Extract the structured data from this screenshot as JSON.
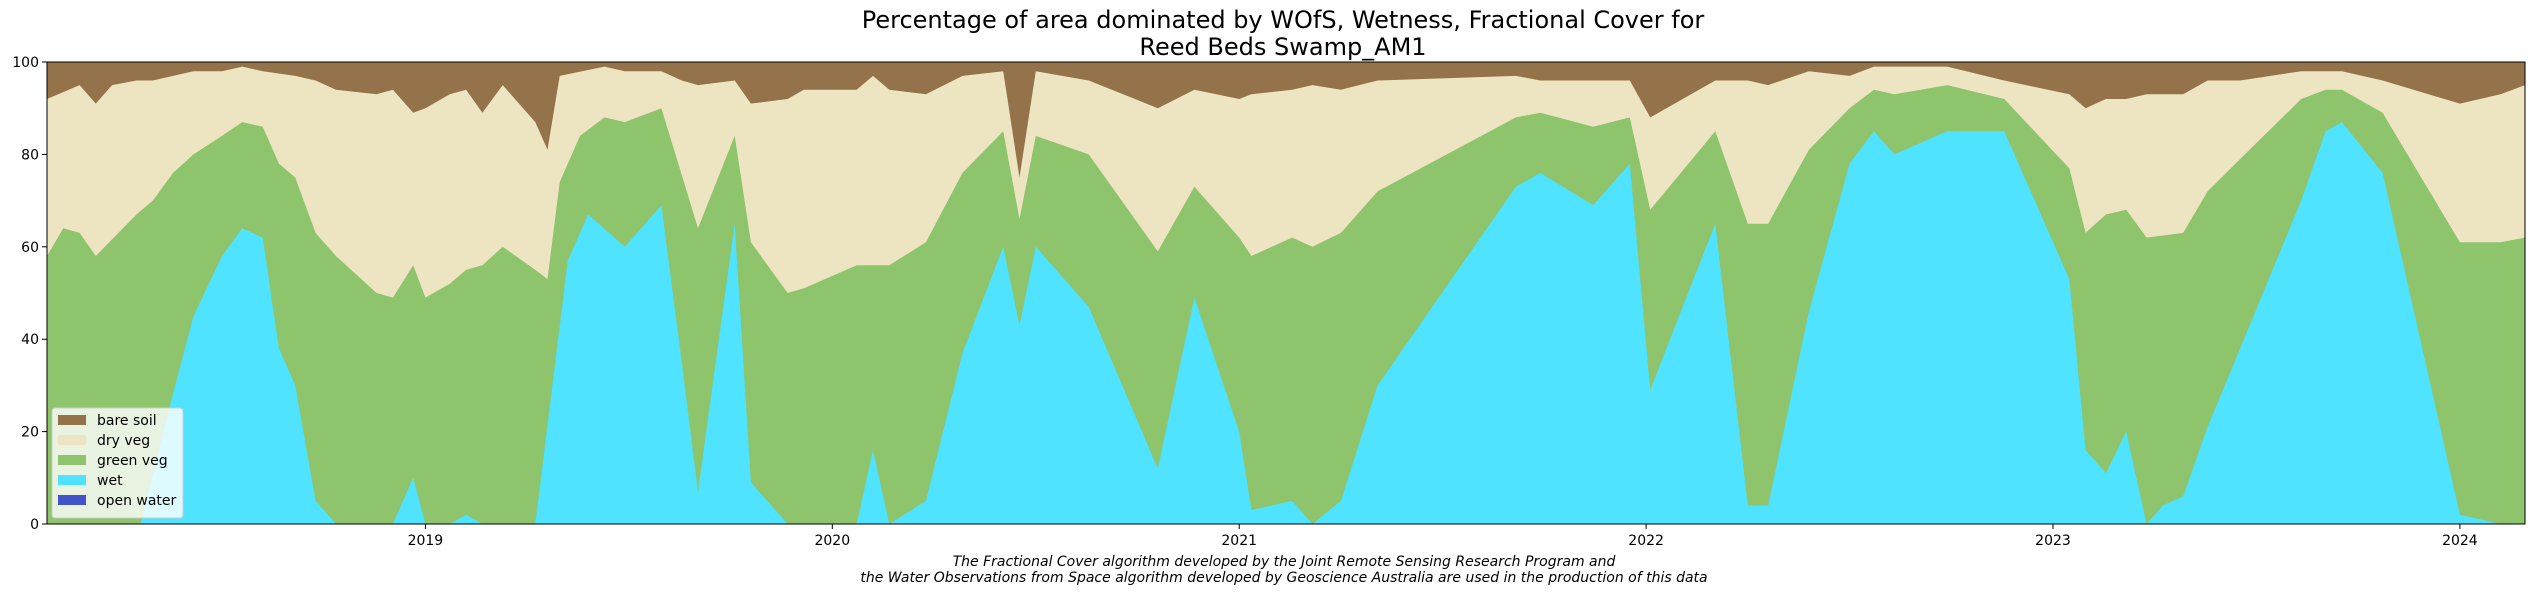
{
  "chart_data": {
    "type": "area",
    "stacked": true,
    "title": [
      "Percentage of area dominated by WOfS, Wetness, Fractional Cover for",
      "Reed Beds Swamp_AM1"
    ],
    "xlabel": "",
    "ylabel": "",
    "xlim": [
      2018.07,
      2024.16
    ],
    "ylim": [
      0,
      100
    ],
    "x_ticks": [
      2019,
      2020,
      2021,
      2022,
      2023,
      2024
    ],
    "x_tick_labels": [
      "2019",
      "2020",
      "2021",
      "2022",
      "2023",
      "2024"
    ],
    "y_ticks": [
      0,
      20,
      40,
      60,
      80,
      100
    ],
    "y_tick_labels": [
      "0",
      "20",
      "40",
      "60",
      "80",
      "100"
    ],
    "grid": false,
    "legend_position": "lower-left",
    "legend": [
      "bare soil",
      "dry veg",
      "green veg",
      "wet",
      "open water"
    ],
    "footnote": [
      "The Fractional Cover algorithm developed by the Joint Remote Sensing Research Program and",
      "the Water Observations from Space algorithm developed by Geoscience Australia are used in the production of this data"
    ],
    "colors": {
      "open_water": "#4053c8",
      "wet": "#4fe3ff",
      "green_veg": "#8dc46c",
      "dry_veg": "#ede4c2",
      "bare_soil": "#95734a"
    },
    "wet_upper": [
      [
        2018.07,
        0
      ],
      [
        2018.3,
        0
      ],
      [
        2018.37,
        25
      ],
      [
        2018.43,
        45
      ],
      [
        2018.5,
        58
      ],
      [
        2018.55,
        64
      ],
      [
        2018.6,
        62
      ],
      [
        2018.64,
        38
      ],
      [
        2018.68,
        30
      ],
      [
        2018.73,
        5
      ],
      [
        2018.78,
        0
      ],
      [
        2018.92,
        0
      ],
      [
        2018.97,
        10
      ],
      [
        2019.0,
        0
      ],
      [
        2019.06,
        0
      ],
      [
        2019.1,
        2
      ],
      [
        2019.14,
        0
      ],
      [
        2019.27,
        0
      ],
      [
        2019.35,
        57
      ],
      [
        2019.4,
        67
      ],
      [
        2019.49,
        60
      ],
      [
        2019.58,
        69
      ],
      [
        2019.63,
        35
      ],
      [
        2019.67,
        7
      ],
      [
        2019.76,
        65
      ],
      [
        2019.8,
        9
      ],
      [
        2019.89,
        0
      ],
      [
        2020.06,
        0
      ],
      [
        2020.1,
        16
      ],
      [
        2020.14,
        0
      ],
      [
        2020.23,
        5
      ],
      [
        2020.32,
        37
      ],
      [
        2020.42,
        60
      ],
      [
        2020.46,
        43
      ],
      [
        2020.5,
        60
      ],
      [
        2020.63,
        47
      ],
      [
        2020.8,
        12
      ],
      [
        2020.89,
        49
      ],
      [
        2021.0,
        20
      ],
      [
        2021.03,
        3
      ],
      [
        2021.13,
        5
      ],
      [
        2021.18,
        0
      ],
      [
        2021.25,
        5
      ],
      [
        2021.34,
        30
      ],
      [
        2021.68,
        73
      ],
      [
        2021.74,
        76
      ],
      [
        2021.87,
        69
      ],
      [
        2021.96,
        78
      ],
      [
        2022.01,
        29
      ],
      [
        2022.17,
        65
      ],
      [
        2022.25,
        4
      ],
      [
        2022.3,
        4
      ],
      [
        2022.4,
        46
      ],
      [
        2022.5,
        78
      ],
      [
        2022.56,
        85
      ],
      [
        2022.61,
        80
      ],
      [
        2022.74,
        85
      ],
      [
        2022.88,
        85
      ],
      [
        2023.04,
        53
      ],
      [
        2023.08,
        16
      ],
      [
        2023.13,
        11
      ],
      [
        2023.18,
        20
      ],
      [
        2023.23,
        0
      ],
      [
        2023.27,
        4
      ],
      [
        2023.32,
        6
      ],
      [
        2023.38,
        21
      ],
      [
        2023.46,
        38
      ],
      [
        2023.61,
        70
      ],
      [
        2023.67,
        85
      ],
      [
        2023.71,
        87
      ],
      [
        2023.81,
        76
      ],
      [
        2024.0,
        2
      ],
      [
        2024.1,
        0
      ],
      [
        2024.16,
        0
      ]
    ],
    "green_upper": [
      [
        2018.07,
        58
      ],
      [
        2018.11,
        64
      ],
      [
        2018.15,
        63
      ],
      [
        2018.19,
        58
      ],
      [
        2018.29,
        67
      ],
      [
        2018.33,
        70
      ],
      [
        2018.38,
        76
      ],
      [
        2018.43,
        80
      ],
      [
        2018.5,
        84
      ],
      [
        2018.55,
        87
      ],
      [
        2018.6,
        86
      ],
      [
        2018.64,
        78
      ],
      [
        2018.68,
        75
      ],
      [
        2018.73,
        63
      ],
      [
        2018.78,
        58
      ],
      [
        2018.88,
        50
      ],
      [
        2018.92,
        49
      ],
      [
        2018.97,
        56
      ],
      [
        2019.0,
        49
      ],
      [
        2019.06,
        52
      ],
      [
        2019.1,
        55
      ],
      [
        2019.14,
        56
      ],
      [
        2019.19,
        60
      ],
      [
        2019.27,
        55
      ],
      [
        2019.3,
        53
      ],
      [
        2019.33,
        74
      ],
      [
        2019.38,
        84
      ],
      [
        2019.44,
        88
      ],
      [
        2019.49,
        87
      ],
      [
        2019.58,
        90
      ],
      [
        2019.67,
        64
      ],
      [
        2019.76,
        84
      ],
      [
        2019.8,
        61
      ],
      [
        2019.89,
        50
      ],
      [
        2019.93,
        51
      ],
      [
        2020.06,
        56
      ],
      [
        2020.14,
        56
      ],
      [
        2020.23,
        61
      ],
      [
        2020.32,
        76
      ],
      [
        2020.42,
        85
      ],
      [
        2020.46,
        66
      ],
      [
        2020.5,
        84
      ],
      [
        2020.63,
        80
      ],
      [
        2020.8,
        59
      ],
      [
        2020.89,
        73
      ],
      [
        2021.0,
        62
      ],
      [
        2021.03,
        58
      ],
      [
        2021.13,
        62
      ],
      [
        2021.18,
        60
      ],
      [
        2021.25,
        63
      ],
      [
        2021.34,
        72
      ],
      [
        2021.68,
        88
      ],
      [
        2021.74,
        89
      ],
      [
        2021.87,
        86
      ],
      [
        2021.96,
        88
      ],
      [
        2022.01,
        68
      ],
      [
        2022.17,
        85
      ],
      [
        2022.25,
        65
      ],
      [
        2022.3,
        65
      ],
      [
        2022.4,
        81
      ],
      [
        2022.5,
        90
      ],
      [
        2022.56,
        94
      ],
      [
        2022.61,
        93
      ],
      [
        2022.74,
        95
      ],
      [
        2022.88,
        92
      ],
      [
        2023.04,
        77
      ],
      [
        2023.08,
        63
      ],
      [
        2023.13,
        67
      ],
      [
        2023.18,
        68
      ],
      [
        2023.23,
        62
      ],
      [
        2023.32,
        63
      ],
      [
        2023.38,
        72
      ],
      [
        2023.46,
        79
      ],
      [
        2023.61,
        92
      ],
      [
        2023.67,
        94
      ],
      [
        2023.71,
        94
      ],
      [
        2023.81,
        89
      ],
      [
        2024.0,
        61
      ],
      [
        2024.1,
        61
      ],
      [
        2024.16,
        62
      ]
    ],
    "dry_upper": [
      [
        2018.07,
        92
      ],
      [
        2018.15,
        95
      ],
      [
        2018.19,
        91
      ],
      [
        2018.23,
        95
      ],
      [
        2018.29,
        96
      ],
      [
        2018.33,
        96
      ],
      [
        2018.38,
        97
      ],
      [
        2018.43,
        98
      ],
      [
        2018.5,
        98
      ],
      [
        2018.55,
        99
      ],
      [
        2018.6,
        98
      ],
      [
        2018.68,
        97
      ],
      [
        2018.73,
        96
      ],
      [
        2018.78,
        94
      ],
      [
        2018.88,
        93
      ],
      [
        2018.92,
        94
      ],
      [
        2018.97,
        89
      ],
      [
        2019.0,
        90
      ],
      [
        2019.06,
        93
      ],
      [
        2019.1,
        94
      ],
      [
        2019.14,
        89
      ],
      [
        2019.19,
        95
      ],
      [
        2019.27,
        87
      ],
      [
        2019.3,
        81
      ],
      [
        2019.33,
        97
      ],
      [
        2019.44,
        99
      ],
      [
        2019.49,
        98
      ],
      [
        2019.58,
        98
      ],
      [
        2019.63,
        96
      ],
      [
        2019.67,
        95
      ],
      [
        2019.76,
        96
      ],
      [
        2019.8,
        91
      ],
      [
        2019.89,
        92
      ],
      [
        2019.93,
        94
      ],
      [
        2020.06,
        94
      ],
      [
        2020.1,
        97
      ],
      [
        2020.14,
        94
      ],
      [
        2020.23,
        93
      ],
      [
        2020.32,
        97
      ],
      [
        2020.42,
        98
      ],
      [
        2020.46,
        75
      ],
      [
        2020.5,
        98
      ],
      [
        2020.63,
        96
      ],
      [
        2020.8,
        90
      ],
      [
        2020.89,
        94
      ],
      [
        2021.0,
        92
      ],
      [
        2021.03,
        93
      ],
      [
        2021.13,
        94
      ],
      [
        2021.18,
        95
      ],
      [
        2021.25,
        94
      ],
      [
        2021.34,
        96
      ],
      [
        2021.68,
        97
      ],
      [
        2021.74,
        96
      ],
      [
        2021.87,
        96
      ],
      [
        2021.96,
        96
      ],
      [
        2022.01,
        88
      ],
      [
        2022.17,
        96
      ],
      [
        2022.25,
        96
      ],
      [
        2022.3,
        95
      ],
      [
        2022.4,
        98
      ],
      [
        2022.5,
        97
      ],
      [
        2022.56,
        99
      ],
      [
        2022.61,
        99
      ],
      [
        2022.74,
        99
      ],
      [
        2022.88,
        96
      ],
      [
        2023.04,
        93
      ],
      [
        2023.08,
        90
      ],
      [
        2023.13,
        92
      ],
      [
        2023.18,
        92
      ],
      [
        2023.23,
        93
      ],
      [
        2023.32,
        93
      ],
      [
        2023.38,
        96
      ],
      [
        2023.46,
        96
      ],
      [
        2023.61,
        98
      ],
      [
        2023.67,
        98
      ],
      [
        2023.71,
        98
      ],
      [
        2023.81,
        96
      ],
      [
        2024.0,
        91
      ],
      [
        2024.1,
        93
      ],
      [
        2024.16,
        95
      ]
    ],
    "bare_upper": [
      [
        2018.07,
        100
      ],
      [
        2024.16,
        100
      ]
    ]
  }
}
